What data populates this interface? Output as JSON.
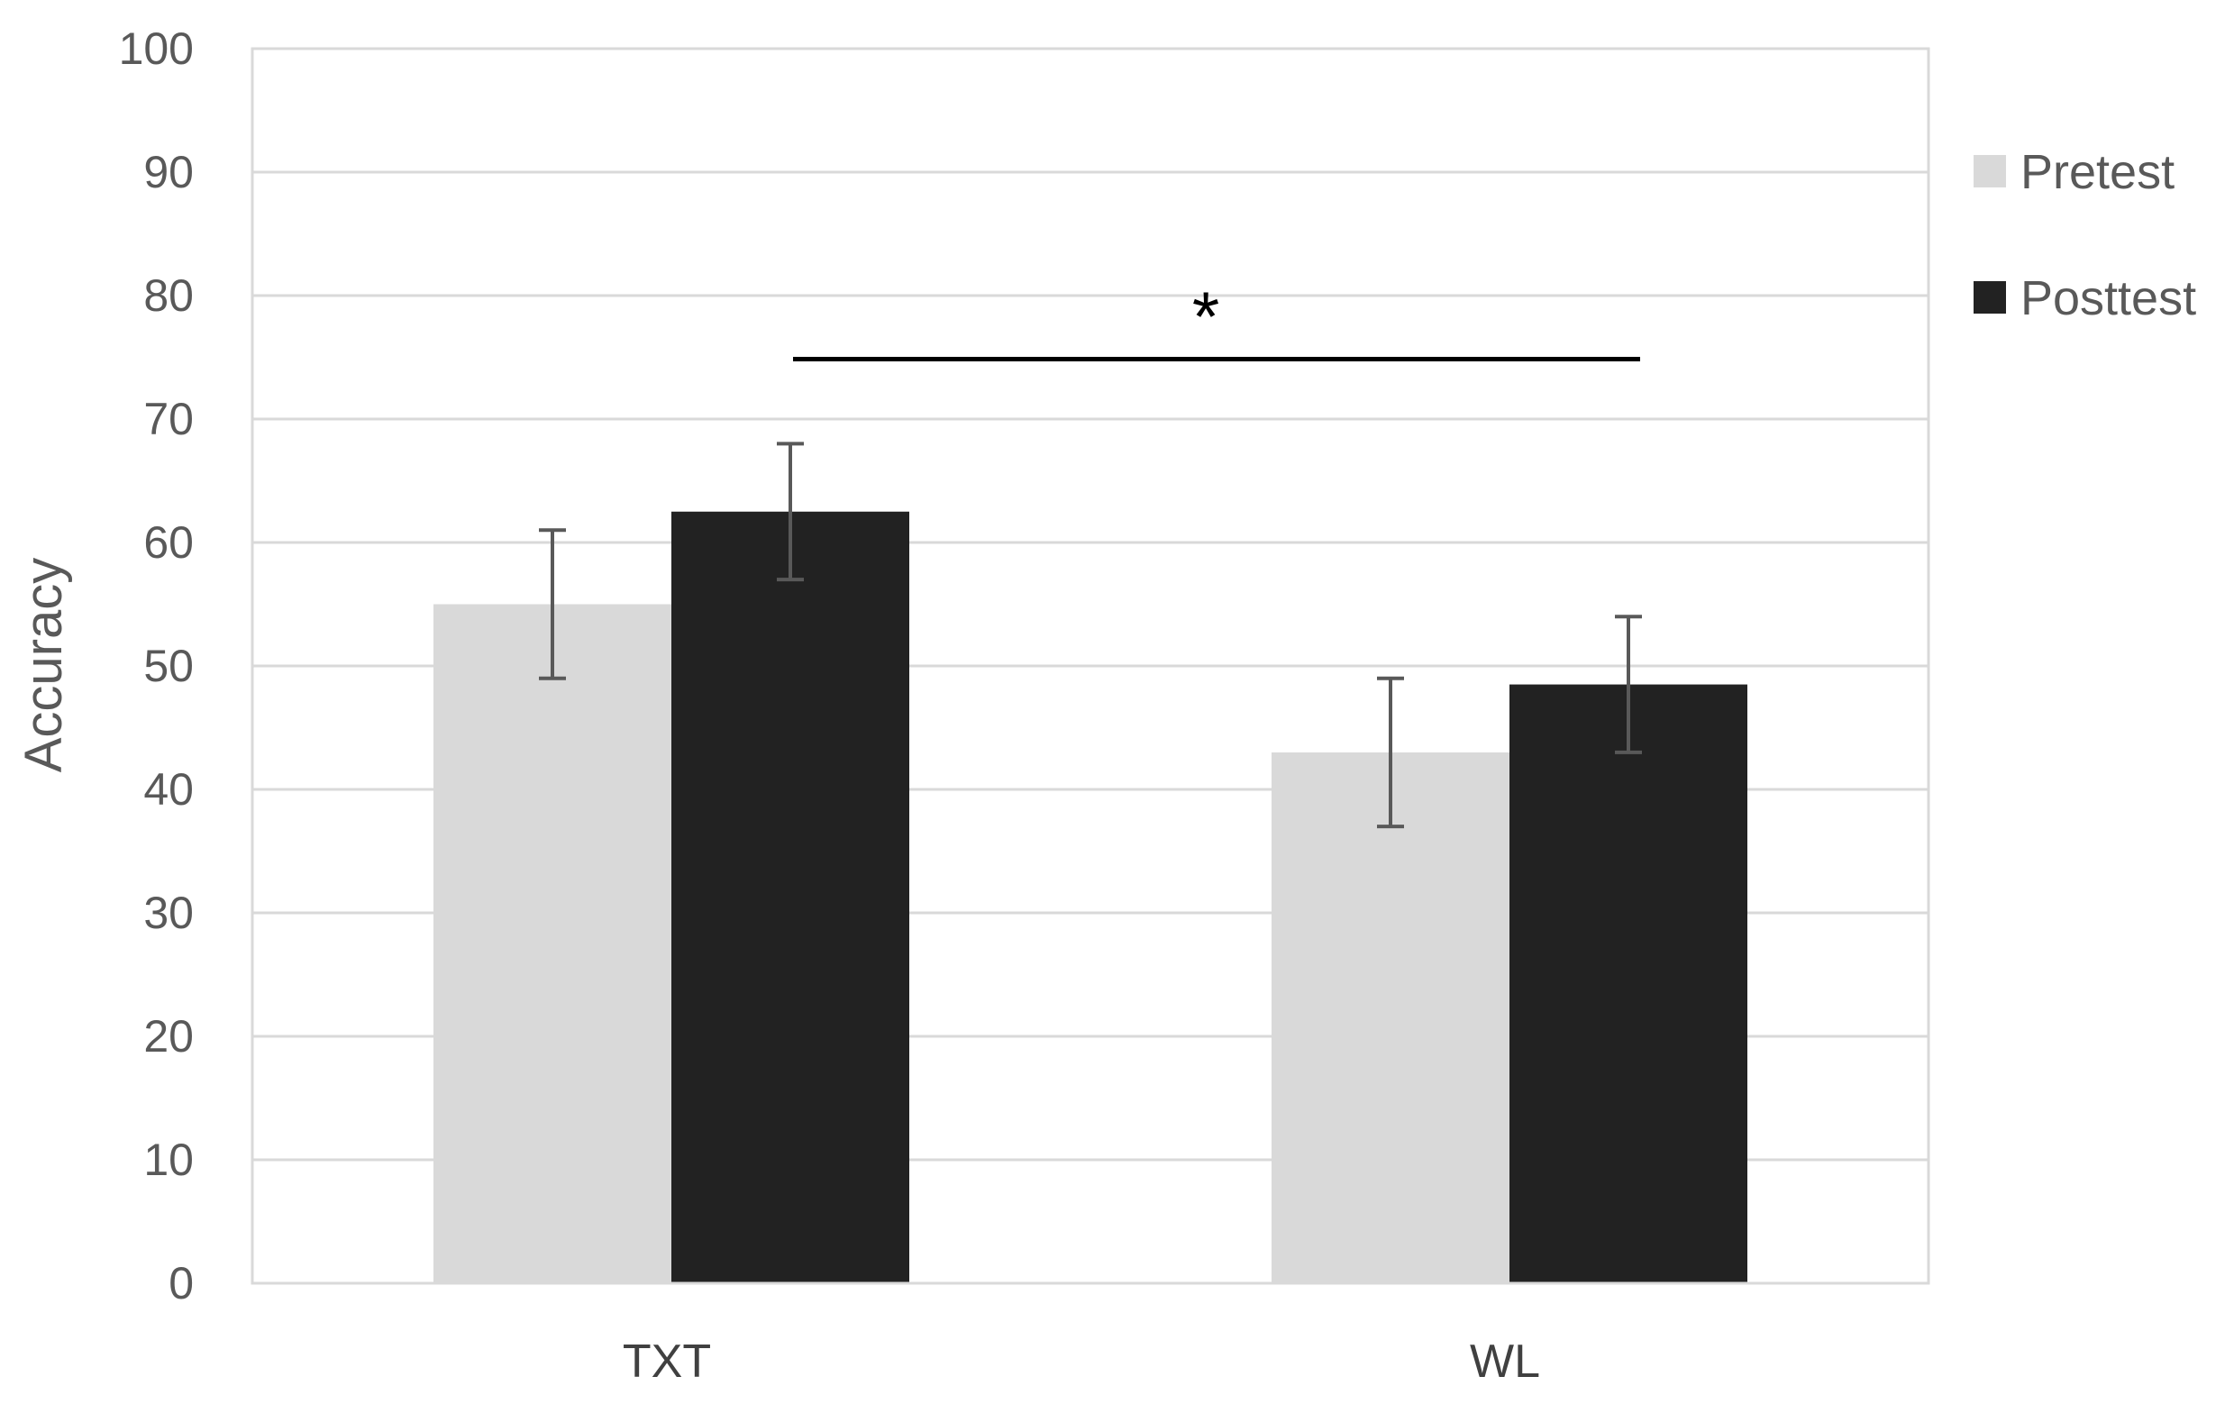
{
  "chart_data": {
    "type": "bar",
    "categories": [
      "TXT",
      "WL"
    ],
    "series": [
      {
        "name": "Pretest",
        "values": [
          55,
          43
        ],
        "error_low": [
          49,
          37
        ],
        "error_high": [
          61,
          49
        ],
        "color": "#d9d9d9"
      },
      {
        "name": "Posttest",
        "values": [
          62.5,
          48.5
        ],
        "error_low": [
          57,
          43
        ],
        "error_high": [
          68,
          54
        ],
        "color": "#222222"
      }
    ],
    "ylabel": "Accuracy",
    "ylim": [
      0,
      100
    ],
    "yticks": [
      0,
      10,
      20,
      30,
      40,
      50,
      60,
      70,
      80,
      90,
      100
    ],
    "grid": true,
    "legend": "right",
    "annotation": {
      "text": "*",
      "from_category": "TXT",
      "to_category": "WL",
      "y": 75
    }
  }
}
